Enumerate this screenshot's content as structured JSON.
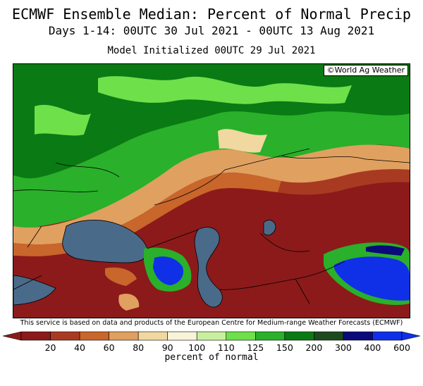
{
  "header": {
    "title": "ECMWF Ensemble Median: Percent of Normal Precip",
    "subtitle": "Days 1-14: 00UTC 30 Jul 2021 - 00UTC 13 Aug 2021",
    "init": "Model Initialized 00UTC 29 Jul 2021"
  },
  "map": {
    "copyright": "©World Ag Weather",
    "region": "Black Sea / Caspian / Russia"
  },
  "credit": "This service is based on data and products of the European Centre for Medium-range Weather Forecasts (ECMWF)",
  "legend": {
    "unit": "percent of normal",
    "ticks": [
      "20",
      "40",
      "60",
      "80",
      "90",
      "100",
      "110",
      "125",
      "150",
      "200",
      "300",
      "400",
      "600"
    ],
    "colors": [
      "#8c1a1a",
      "#a83a22",
      "#c8662c",
      "#e0a060",
      "#f0d8a0",
      "#f8f4d8",
      "#c8f0a0",
      "#6ee04a",
      "#2ab02a",
      "#0a7a14",
      "#1c4a1c",
      "#0a0a7a",
      "#1030e8"
    ]
  }
}
